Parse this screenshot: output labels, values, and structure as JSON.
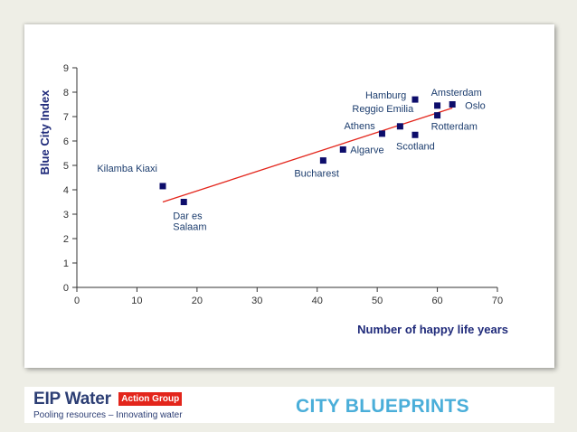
{
  "chart_data": {
    "type": "scatter",
    "xlabel": "Number of happy life years",
    "ylabel": "Blue City Index",
    "xlim": [
      0,
      70
    ],
    "ylim": [
      0,
      9
    ],
    "xticks": [
      0,
      10,
      20,
      30,
      40,
      50,
      60,
      70
    ],
    "yticks": [
      0,
      1,
      2,
      3,
      4,
      5,
      6,
      7,
      8,
      9
    ],
    "grid": false,
    "points": [
      {
        "label": "Kilamba Kiaxi",
        "x": 14.3,
        "y": 4.15
      },
      {
        "label": "Dar es\nSalaam",
        "x": 17.8,
        "y": 3.5
      },
      {
        "label": "Bucharest",
        "x": 41,
        "y": 5.2
      },
      {
        "label": "Algarve",
        "x": 44.3,
        "y": 5.65
      },
      {
        "label": "Athens",
        "x": 50.8,
        "y": 6.3
      },
      {
        "label": "Reggio Emilia",
        "x": 53.8,
        "y": 6.6
      },
      {
        "label": "Scotland",
        "x": 56.3,
        "y": 6.25
      },
      {
        "label": "Hamburg",
        "x": 56.3,
        "y": 7.7
      },
      {
        "label": "Amsterdam",
        "x": 60,
        "y": 7.45
      },
      {
        "label": "Rotterdam",
        "x": 60,
        "y": 7.05
      },
      {
        "label": "Oslo",
        "x": 62.5,
        "y": 7.5
      }
    ],
    "trendline": {
      "x": [
        14.3,
        62.5
      ],
      "y": [
        3.5,
        7.35
      ]
    },
    "colors": {
      "point": "#0d0d6b",
      "trendline": "#e3251b",
      "axis_title": "#1f2a7a",
      "point_label": "#1c3d6e"
    }
  },
  "footer": {
    "logo_title": "EIP Water",
    "logo_badge": "Action Group",
    "logo_tagline": "Pooling resources – Innovating water",
    "title": "CITY BLUEPRINTS"
  }
}
